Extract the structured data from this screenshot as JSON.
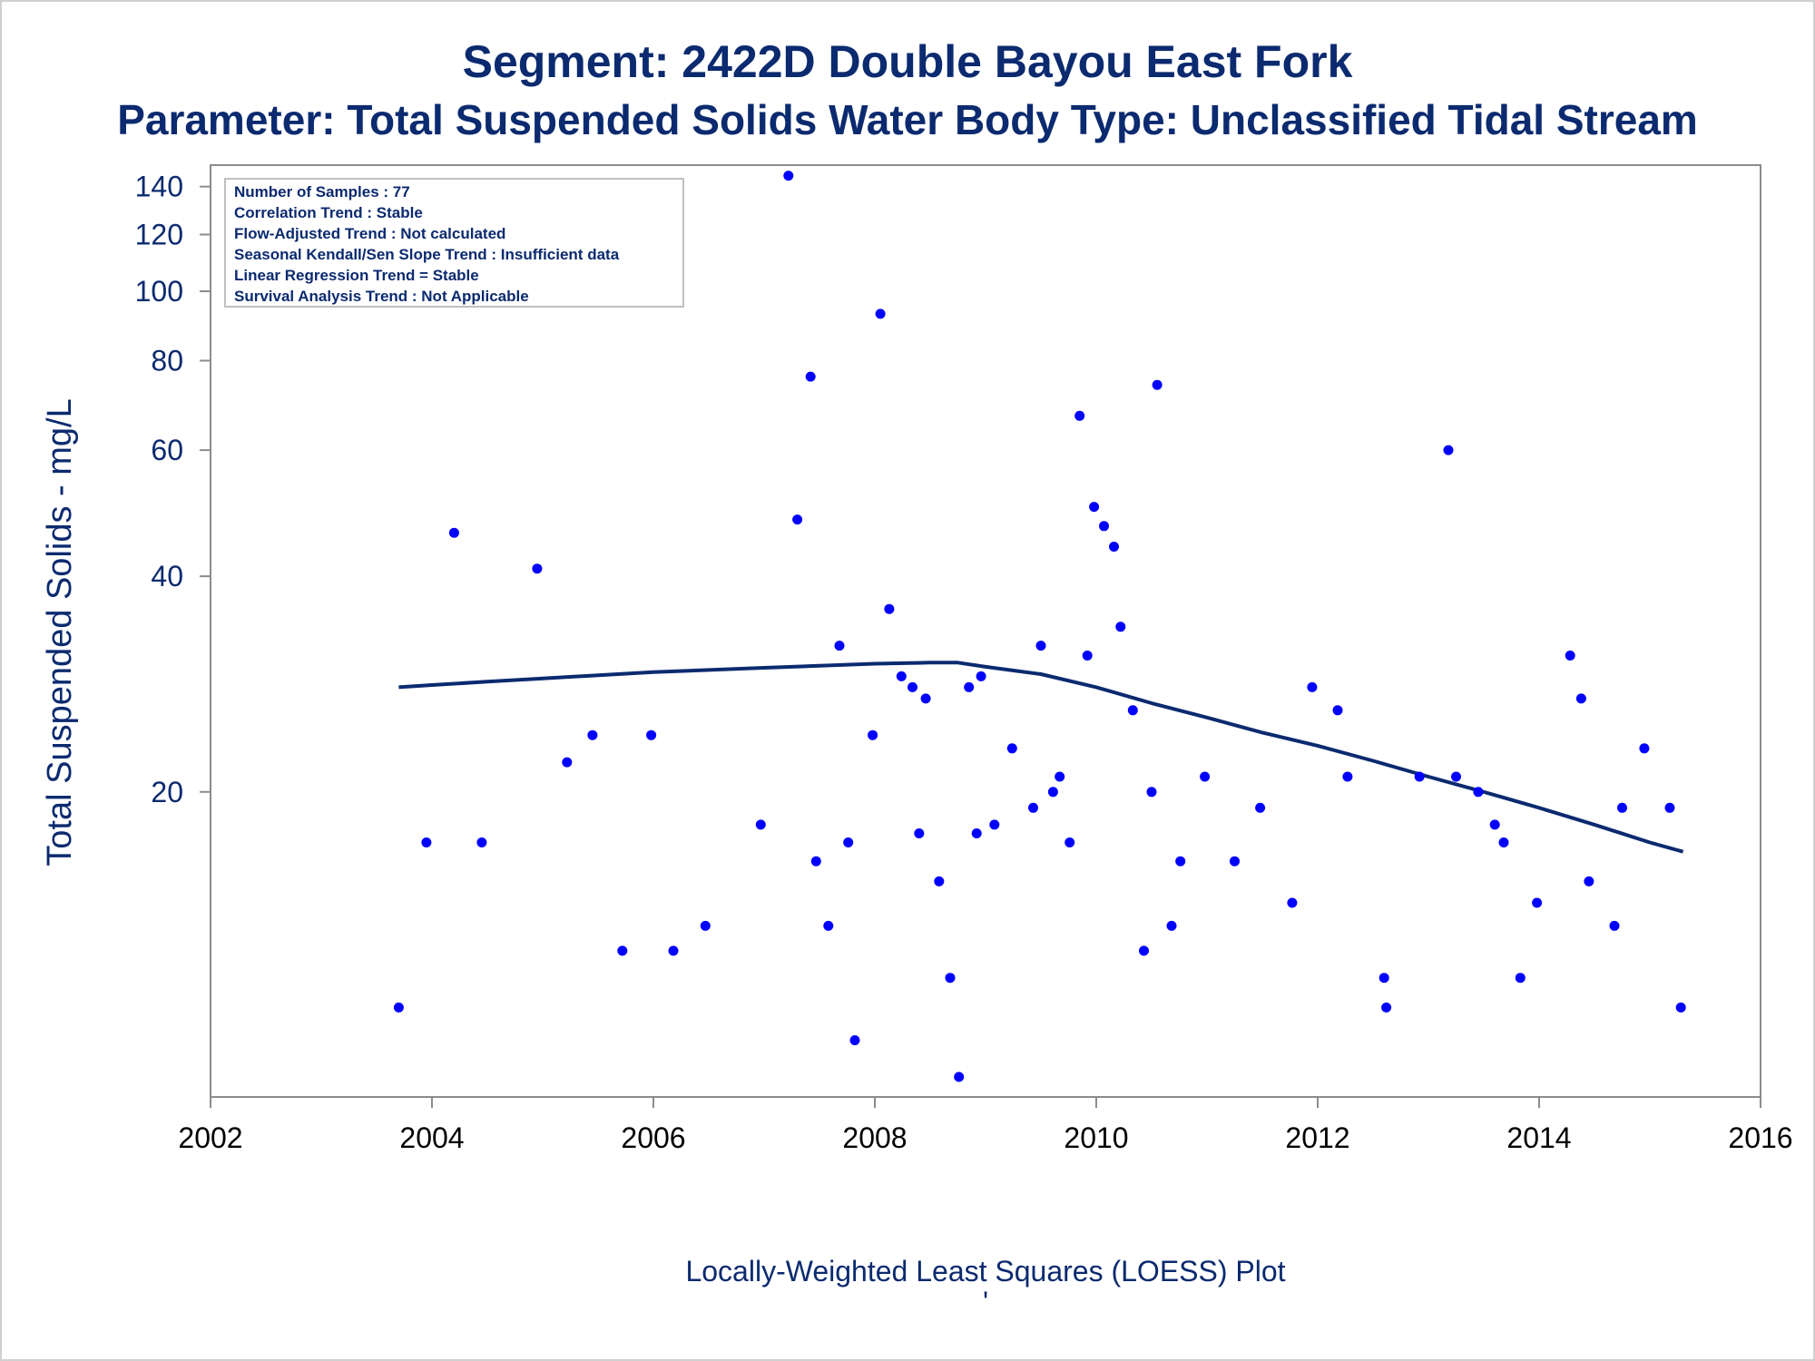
{
  "chart_data": {
    "type": "scatter",
    "title": "Segment: 2422D  Double Bayou East Fork",
    "subtitle": "Parameter: Total Suspended Solids   Water Body Type: Unclassified Tidal Stream",
    "xlabel": "",
    "ylabel": "Total Suspended Solids - mg/L",
    "footnote": "Locally-Weighted Least Squares (LOESS) Plot",
    "footnote2": "'",
    "y_scale": "log",
    "xlim": [
      2002,
      2016
    ],
    "ylim": [
      7.5,
      150
    ],
    "x_ticks": [
      2002,
      2004,
      2006,
      2008,
      2010,
      2012,
      2014,
      2016
    ],
    "y_ticks": [
      20,
      40,
      60,
      80,
      100,
      120,
      140
    ],
    "grid": false,
    "inset_lines": [
      "Number of Samples : 77",
      "Correlation Trend : Stable",
      "Flow-Adjusted Trend : Not calculated",
      "Seasonal Kendall/Sen Slope Trend : Insufficient data",
      "Linear Regression Trend = Stable",
      "Survival Analysis Trend : Not Applicable"
    ],
    "marker_color": "#0000ff",
    "line_color": "#0b2a6f",
    "series": [
      {
        "type": "scatter",
        "points": [
          [
            2003.7,
            10.0
          ],
          [
            2003.95,
            17.0
          ],
          [
            2004.2,
            46.0
          ],
          [
            2004.45,
            17.0
          ],
          [
            2004.95,
            41.0
          ],
          [
            2005.22,
            22.0
          ],
          [
            2005.45,
            24.0
          ],
          [
            2005.72,
            12.0
          ],
          [
            2005.98,
            24.0
          ],
          [
            2006.18,
            12.0
          ],
          [
            2006.47,
            13.0
          ],
          [
            2006.97,
            18.0
          ],
          [
            2007.22,
            145.0
          ],
          [
            2007.3,
            48.0
          ],
          [
            2007.42,
            76.0
          ],
          [
            2007.47,
            16.0
          ],
          [
            2007.58,
            13.0
          ],
          [
            2007.68,
            32.0
          ],
          [
            2007.76,
            17.0
          ],
          [
            2007.82,
            9.0
          ],
          [
            2007.98,
            24.0
          ],
          [
            2008.05,
            93.0
          ],
          [
            2008.13,
            36.0
          ],
          [
            2008.24,
            29.0
          ],
          [
            2008.34,
            28.0
          ],
          [
            2008.4,
            17.5
          ],
          [
            2008.46,
            27.0
          ],
          [
            2008.58,
            15.0
          ],
          [
            2008.68,
            11.0
          ],
          [
            2008.76,
            8.0
          ],
          [
            2008.85,
            28.0
          ],
          [
            2008.92,
            17.5
          ],
          [
            2008.96,
            29.0
          ],
          [
            2009.08,
            18.0
          ],
          [
            2009.24,
            23.0
          ],
          [
            2009.43,
            19.0
          ],
          [
            2009.5,
            32.0
          ],
          [
            2009.61,
            20.0
          ],
          [
            2009.67,
            21.0
          ],
          [
            2009.76,
            17.0
          ],
          [
            2009.85,
            67.0
          ],
          [
            2009.92,
            31.0
          ],
          [
            2009.98,
            50.0
          ],
          [
            2010.07,
            47.0
          ],
          [
            2010.16,
            44.0
          ],
          [
            2010.22,
            34.0
          ],
          [
            2010.33,
            26.0
          ],
          [
            2010.43,
            12.0
          ],
          [
            2010.5,
            20.0
          ],
          [
            2010.55,
            74.0
          ],
          [
            2010.68,
            13.0
          ],
          [
            2010.76,
            16.0
          ],
          [
            2010.98,
            21.0
          ],
          [
            2011.25,
            16.0
          ],
          [
            2011.48,
            19.0
          ],
          [
            2011.77,
            14.0
          ],
          [
            2011.95,
            28.0
          ],
          [
            2012.18,
            26.0
          ],
          [
            2012.27,
            21.0
          ],
          [
            2012.6,
            11.0
          ],
          [
            2012.62,
            10.0
          ],
          [
            2012.92,
            21.0
          ],
          [
            2013.18,
            60.0
          ],
          [
            2013.25,
            21.0
          ],
          [
            2013.45,
            20.0
          ],
          [
            2013.6,
            18.0
          ],
          [
            2013.68,
            17.0
          ],
          [
            2013.83,
            11.0
          ],
          [
            2013.98,
            14.0
          ],
          [
            2014.28,
            31.0
          ],
          [
            2014.38,
            27.0
          ],
          [
            2014.45,
            15.0
          ],
          [
            2014.68,
            13.0
          ],
          [
            2014.75,
            19.0
          ],
          [
            2014.95,
            23.0
          ],
          [
            2015.18,
            19.0
          ],
          [
            2015.28,
            10.0
          ]
        ]
      },
      {
        "type": "line",
        "points": [
          [
            2003.7,
            28.0
          ],
          [
            2004.0,
            28.2
          ],
          [
            2004.5,
            28.5
          ],
          [
            2005.0,
            28.8
          ],
          [
            2005.5,
            29.1
          ],
          [
            2006.0,
            29.4
          ],
          [
            2006.5,
            29.6
          ],
          [
            2007.0,
            29.8
          ],
          [
            2007.5,
            30.0
          ],
          [
            2008.0,
            30.2
          ],
          [
            2008.5,
            30.3
          ],
          [
            2008.75,
            30.3
          ],
          [
            2009.0,
            29.9
          ],
          [
            2009.5,
            29.2
          ],
          [
            2010.0,
            28.0
          ],
          [
            2010.5,
            26.6
          ],
          [
            2011.0,
            25.4
          ],
          [
            2011.5,
            24.2
          ],
          [
            2012.0,
            23.2
          ],
          [
            2012.5,
            22.1
          ],
          [
            2013.0,
            21.0
          ],
          [
            2013.5,
            20.0
          ],
          [
            2014.0,
            19.0
          ],
          [
            2014.5,
            18.0
          ],
          [
            2015.0,
            17.0
          ],
          [
            2015.3,
            16.5
          ]
        ]
      }
    ]
  }
}
